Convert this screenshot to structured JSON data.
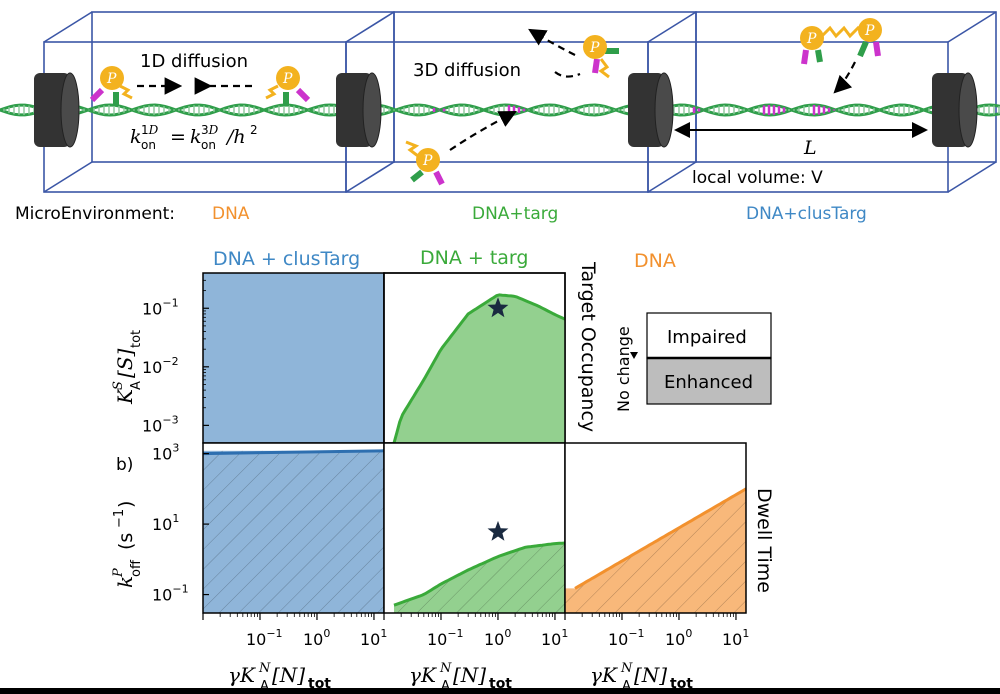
{
  "top_panel": {
    "label_1d": "1D diffusion",
    "label_3d": "3D diffusion",
    "kon_equation": "k_on^1D = k_on^3D / h^2",
    "length_label": "L",
    "volume_label": "local volume: V",
    "protein_letter": "P"
  },
  "micro_legend": {
    "title": "MicroEnvironment:",
    "dna": "DNA",
    "dna_targ": "DNA+targ",
    "dna_clustarg": "DNA+clusTarg"
  },
  "colors": {
    "dna": "#f2912e",
    "dna_targ": "#3aaa3a",
    "dna_clustarg": "#3f88c5",
    "box_edge": "#3b56a6",
    "dna_strand": "#2f9e4a",
    "target_site": "#cc33cc",
    "protein": "#f3b21f"
  },
  "column_titles": {
    "clustarg": "DNA + clusTarg",
    "targ": "DNA + targ",
    "dna": "DNA"
  },
  "panel_labels": {
    "b": "b)"
  },
  "side_labels": {
    "target_occupancy": "Target Occupancy",
    "dwell_time": "Dwell Time"
  },
  "legend": {
    "impaired": "Impaired",
    "enhanced": "Enhanced",
    "no_change": "No change"
  },
  "axes": {
    "top_ylabel": "K_A^S[S]_tot",
    "top_yticks": [
      "10",
      "10",
      "10"
    ],
    "top_ytick_exps": [
      "−1",
      "−2",
      "−3"
    ],
    "bottom_ylabel": "k_off^P (s^−1)",
    "bottom_ytick_bases": [
      "10",
      "10",
      "10"
    ],
    "bottom_ytick_exps": [
      "3",
      "1",
      "−1"
    ],
    "xtick_bases": [
      "10",
      "10",
      "10"
    ],
    "xtick_exps": [
      "−1",
      "0",
      "1"
    ],
    "xlabel": "γK_A^N[N]_tot"
  },
  "chart_data": {
    "type": "area",
    "xscale": "log",
    "xlim": [
      0.01,
      15
    ],
    "panels": [
      {
        "row": "target_occupancy",
        "column": "DNA + clusTarg",
        "ylim": [
          0.0005,
          0.4
        ],
        "fill": "full"
      },
      {
        "row": "target_occupancy",
        "column": "DNA + targ",
        "ylim": [
          0.0005,
          0.4
        ],
        "x": [
          0.015,
          0.02,
          0.05,
          0.1,
          0.3,
          1,
          2,
          5,
          10,
          15
        ],
        "y": [
          0.0005,
          0.0014,
          0.006,
          0.02,
          0.08,
          0.17,
          0.16,
          0.11,
          0.078,
          0.065
        ],
        "marker": {
          "x": 1,
          "y": 0.1,
          "symbol": "star"
        }
      },
      {
        "row": "dwell_time",
        "column": "DNA + clusTarg",
        "ylim": [
          0.03,
          2000
        ],
        "x": [
          0.01,
          15
        ],
        "y": [
          1000,
          1200
        ]
      },
      {
        "row": "dwell_time",
        "column": "DNA + targ",
        "ylim": [
          0.03,
          2000
        ],
        "x": [
          0.015,
          0.05,
          0.1,
          0.3,
          1,
          3,
          10,
          15
        ],
        "y": [
          0.05,
          0.1,
          0.2,
          0.5,
          1.2,
          2.2,
          2.8,
          2.9
        ],
        "marker": {
          "x": 1,
          "y": 6,
          "symbol": "star"
        }
      },
      {
        "row": "dwell_time",
        "column": "DNA",
        "ylim": [
          0.03,
          2000
        ],
        "x": [
          0.015,
          15
        ],
        "y": [
          0.15,
          100
        ]
      }
    ]
  }
}
